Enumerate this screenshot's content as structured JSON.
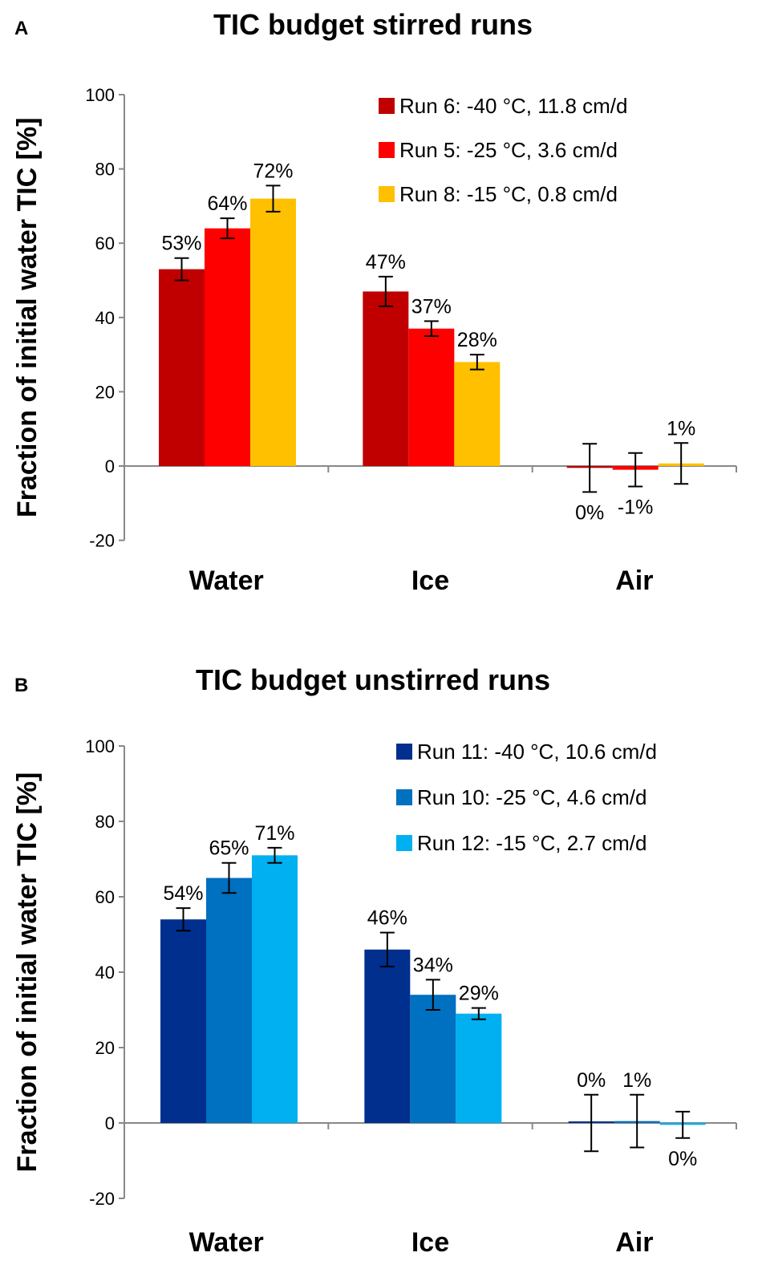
{
  "chart_data": [
    {
      "type": "bar",
      "panel_label": "A",
      "title": "TIC budget stirred runs",
      "ylabel": "Fraction of initial water TIC  [%]",
      "xlabel": "",
      "categories": [
        "Water",
        "Ice",
        "Air"
      ],
      "ylim": [
        -20,
        100
      ],
      "yticks": [
        -20,
        0,
        20,
        40,
        60,
        80,
        100
      ],
      "grid": false,
      "legend_position": "top-right",
      "series": [
        {
          "name": "Run 6: -40 °C, 11.8 cm/d",
          "color": "#C00000",
          "values": [
            53,
            47,
            -0.5
          ],
          "errors": [
            3,
            4,
            6.5
          ],
          "labels": [
            "53%",
            "47%",
            "0%"
          ]
        },
        {
          "name": "Run 5: -25 °C, 3.6 cm/d",
          "color": "#FF0000",
          "values": [
            64,
            37,
            -1
          ],
          "errors": [
            2.7,
            2,
            4.5
          ],
          "labels": [
            "64%",
            "37%",
            "-1%"
          ]
        },
        {
          "name": "Run 8: -15 °C, 0.8 cm/d",
          "color": "#FFC000",
          "values": [
            72,
            28,
            0.7
          ],
          "errors": [
            3.5,
            2,
            5.5
          ],
          "labels": [
            "72%",
            "28%",
            "1%"
          ]
        }
      ]
    },
    {
      "type": "bar",
      "panel_label": "B",
      "title": "TIC budget unstirred runs",
      "ylabel": "Fraction of initial water TIC [%]",
      "xlabel": "",
      "categories": [
        "Water",
        "Ice",
        "Air"
      ],
      "ylim": [
        -20,
        100
      ],
      "yticks": [
        -20,
        0,
        20,
        40,
        60,
        80,
        100
      ],
      "grid": false,
      "legend_position": "top-right",
      "series": [
        {
          "name": "Run 11: -40 °C, 10.6 cm/d",
          "color": "#002F8E",
          "values": [
            54,
            46,
            0
          ],
          "errors": [
            3,
            4.5,
            7.5
          ],
          "labels": [
            "54%",
            "46%",
            "0%"
          ]
        },
        {
          "name": "Run 10: -25 °C, 4.6 cm/d",
          "color": "#0070C0",
          "values": [
            65,
            34,
            0.5
          ],
          "errors": [
            4,
            4,
            7
          ],
          "labels": [
            "65%",
            "34%",
            "1%"
          ]
        },
        {
          "name": "Run 12: -15 °C, 2.7 cm/d",
          "color": "#00B0F0",
          "values": [
            71,
            29,
            -0.5
          ],
          "errors": [
            2,
            1.5,
            3.5
          ],
          "labels": [
            "71%",
            "29%",
            "0%"
          ]
        }
      ]
    }
  ]
}
